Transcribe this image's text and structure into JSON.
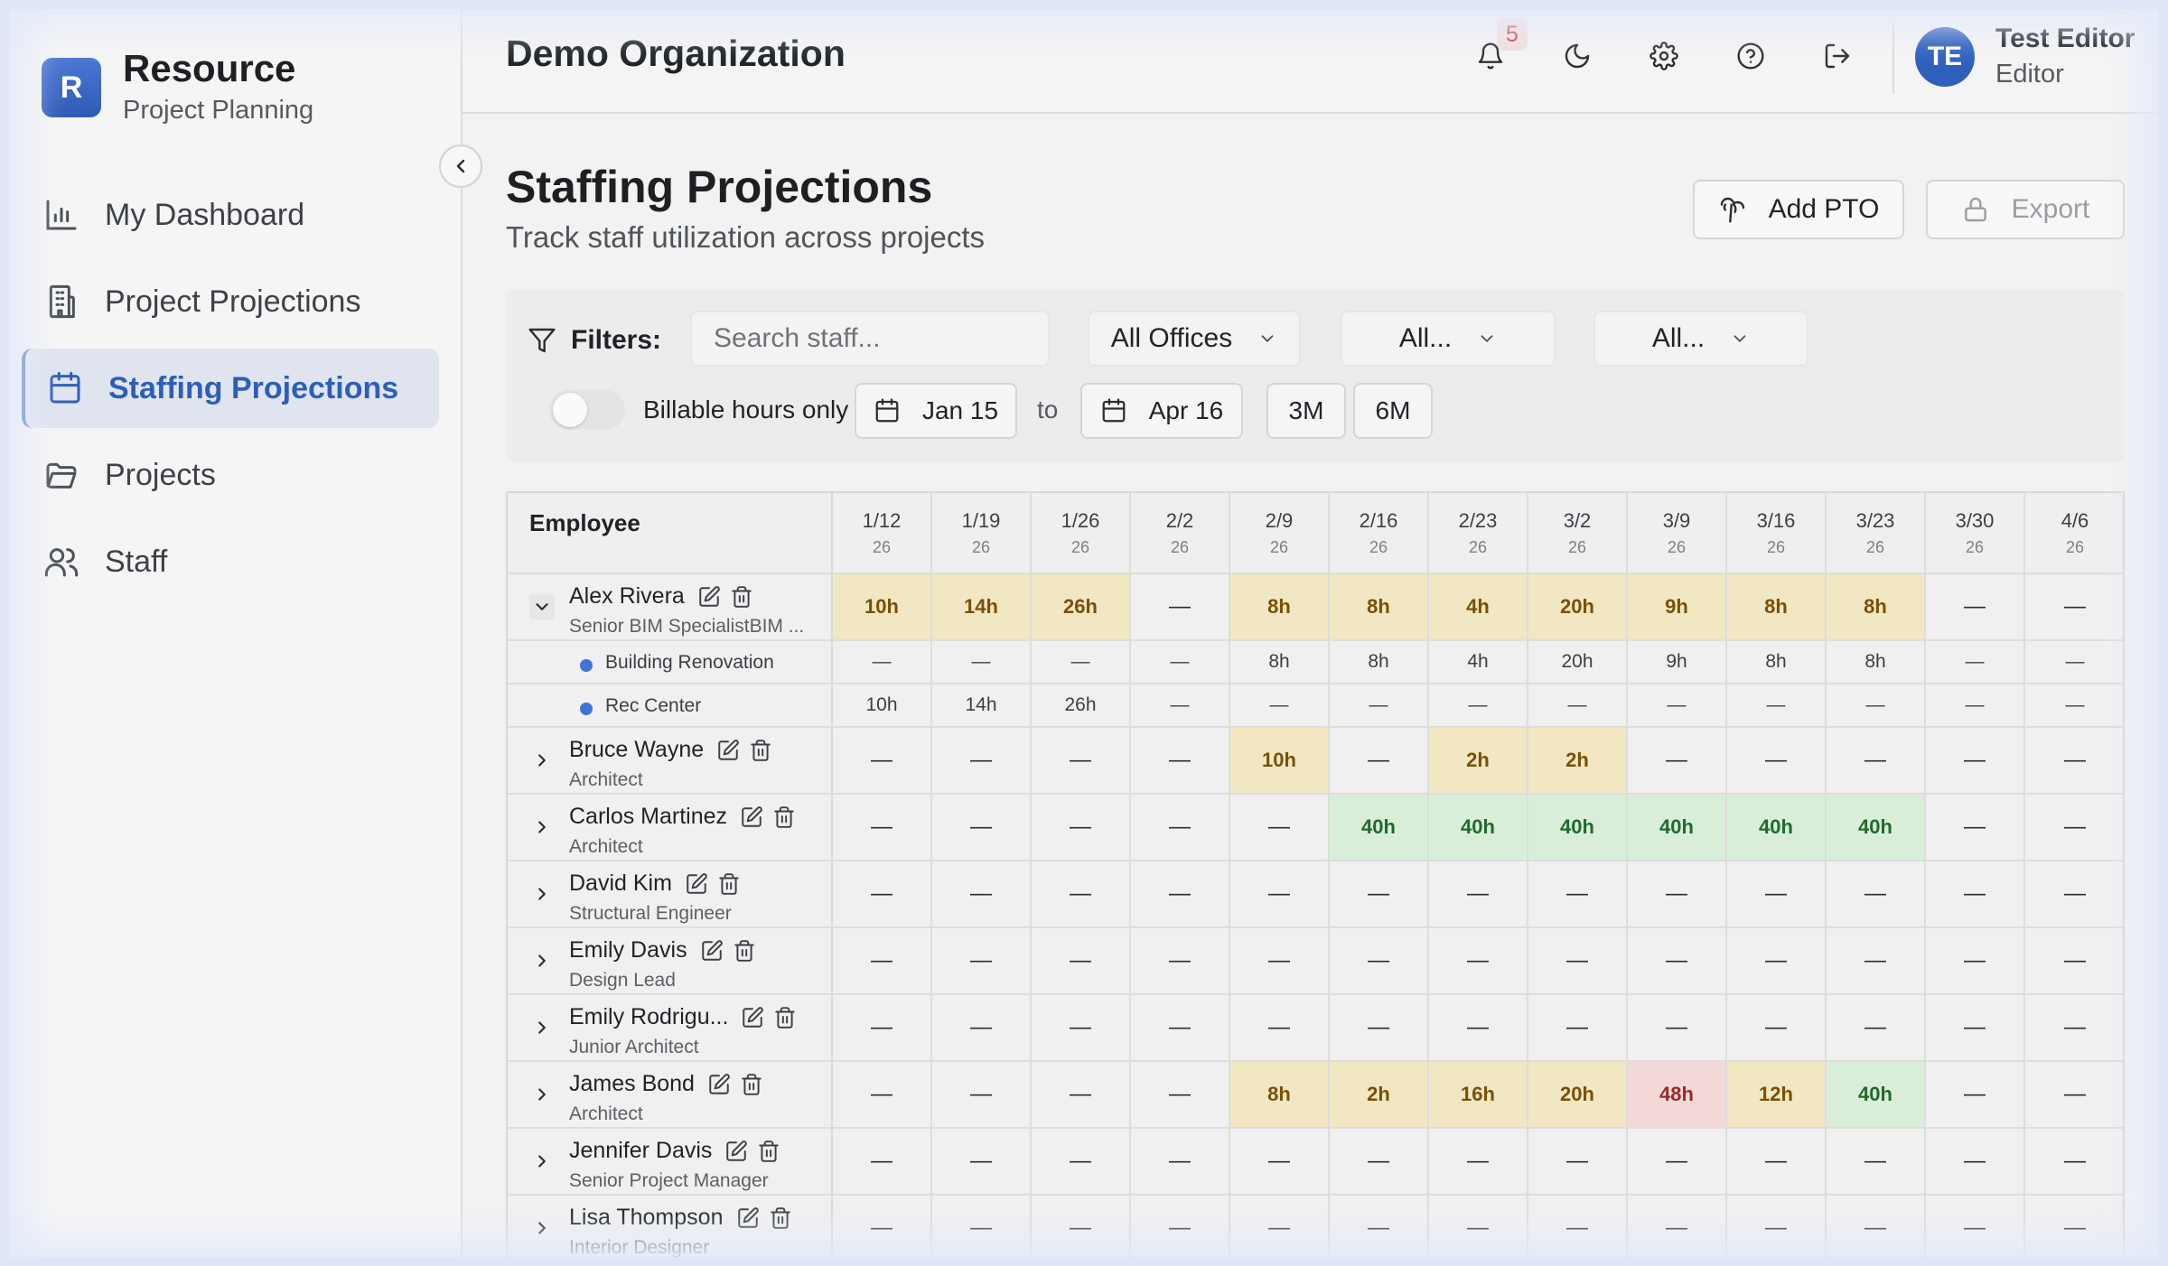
{
  "app": {
    "name": "Resource",
    "subtitle": "Project Planning",
    "logo_letter": "R"
  },
  "sidebar": {
    "items": [
      {
        "label": "My Dashboard",
        "icon": "bar-chart-icon",
        "active": false
      },
      {
        "label": "Project Projections",
        "icon": "building-icon",
        "active": false
      },
      {
        "label": "Staffing Projections",
        "icon": "calendar-icon",
        "active": true
      },
      {
        "label": "Projects",
        "icon": "folder-icon",
        "active": false
      },
      {
        "label": "Staff",
        "icon": "users-icon",
        "active": false
      }
    ]
  },
  "header": {
    "org_name": "Demo Organization",
    "notification_count": "5",
    "user": {
      "initials": "TE",
      "name": "Test Editor",
      "role": "Editor"
    }
  },
  "page": {
    "title": "Staffing Projections",
    "subtitle": "Track staff utilization across projects",
    "add_pto_label": "Add PTO",
    "export_label": "Export"
  },
  "filters": {
    "label": "Filters:",
    "search_placeholder": "Search staff...",
    "office_select": "All Offices",
    "select_2": "All...",
    "select_3": "All...",
    "billable_label": "Billable hours only",
    "billable_on": false,
    "date_from": "Jan 15",
    "to_label": "to",
    "date_to": "Apr 16",
    "range_3m": "3M",
    "range_6m": "6M"
  },
  "table": {
    "employee_header": "Employee",
    "weeks": [
      {
        "date": "1/12",
        "year": "26"
      },
      {
        "date": "1/19",
        "year": "26"
      },
      {
        "date": "1/26",
        "year": "26"
      },
      {
        "date": "2/2",
        "year": "26"
      },
      {
        "date": "2/9",
        "year": "26"
      },
      {
        "date": "2/16",
        "year": "26"
      },
      {
        "date": "2/23",
        "year": "26"
      },
      {
        "date": "3/2",
        "year": "26"
      },
      {
        "date": "3/9",
        "year": "26"
      },
      {
        "date": "3/16",
        "year": "26"
      },
      {
        "date": "3/23",
        "year": "26"
      },
      {
        "date": "3/30",
        "year": "26"
      },
      {
        "date": "4/6",
        "year": "26"
      }
    ],
    "colors": {
      "yellow": "#f2e7c3",
      "green": "#d9eed8",
      "red": "#f2d9d8"
    },
    "rows": [
      {
        "type": "employee",
        "name": "Alex Rivera",
        "role": "Senior BIM SpecialistBIM ...",
        "expanded": true,
        "hours": [
          "10h",
          "14h",
          "26h",
          "—",
          "8h",
          "8h",
          "4h",
          "20h",
          "9h",
          "8h",
          "8h",
          "—",
          "—"
        ],
        "status": [
          "y",
          "y",
          "y",
          "",
          "y",
          "y",
          "y",
          "y",
          "y",
          "y",
          "y",
          "",
          ""
        ]
      },
      {
        "type": "project",
        "name": "Building Renovation",
        "hours": [
          "—",
          "—",
          "—",
          "—",
          "8h",
          "8h",
          "4h",
          "20h",
          "9h",
          "8h",
          "8h",
          "—",
          "—"
        ]
      },
      {
        "type": "project",
        "name": "Rec Center",
        "hours": [
          "10h",
          "14h",
          "26h",
          "—",
          "—",
          "—",
          "—",
          "—",
          "—",
          "—",
          "—",
          "—",
          "—"
        ]
      },
      {
        "type": "employee",
        "name": "Bruce Wayne",
        "role": "Architect",
        "expanded": false,
        "hours": [
          "—",
          "—",
          "—",
          "—",
          "10h",
          "—",
          "2h",
          "2h",
          "—",
          "—",
          "—",
          "—",
          "—"
        ],
        "status": [
          "",
          "",
          "",
          "",
          "y",
          "",
          "y",
          "y",
          "",
          "",
          "",
          "",
          ""
        ]
      },
      {
        "type": "employee",
        "name": "Carlos Martinez",
        "role": "Architect",
        "expanded": false,
        "hours": [
          "—",
          "—",
          "—",
          "—",
          "—",
          "40h",
          "40h",
          "40h",
          "40h",
          "40h",
          "40h",
          "—",
          "—"
        ],
        "status": [
          "",
          "",
          "",
          "",
          "",
          "g",
          "g",
          "g",
          "g",
          "g",
          "g",
          "",
          ""
        ]
      },
      {
        "type": "employee",
        "name": "David Kim",
        "role": "Structural Engineer",
        "expanded": false,
        "hours": [
          "—",
          "—",
          "—",
          "—",
          "—",
          "—",
          "—",
          "—",
          "—",
          "—",
          "—",
          "—",
          "—"
        ],
        "status": [
          "",
          "",
          "",
          "",
          "",
          "",
          "",
          "",
          "",
          "",
          "",
          "",
          ""
        ]
      },
      {
        "type": "employee",
        "name": "Emily Davis",
        "role": "Design Lead",
        "expanded": false,
        "hours": [
          "—",
          "—",
          "—",
          "—",
          "—",
          "—",
          "—",
          "—",
          "—",
          "—",
          "—",
          "—",
          "—"
        ],
        "status": [
          "",
          "",
          "",
          "",
          "",
          "",
          "",
          "",
          "",
          "",
          "",
          "",
          ""
        ]
      },
      {
        "type": "employee",
        "name": "Emily Rodrigu...",
        "role": "Junior Architect",
        "expanded": false,
        "hours": [
          "—",
          "—",
          "—",
          "—",
          "—",
          "—",
          "—",
          "—",
          "—",
          "—",
          "—",
          "—",
          "—"
        ],
        "status": [
          "",
          "",
          "",
          "",
          "",
          "",
          "",
          "",
          "",
          "",
          "",
          "",
          ""
        ]
      },
      {
        "type": "employee",
        "name": "James Bond",
        "role": "Architect",
        "expanded": false,
        "hours": [
          "—",
          "—",
          "—",
          "—",
          "8h",
          "2h",
          "16h",
          "20h",
          "48h",
          "12h",
          "40h",
          "—",
          "—"
        ],
        "status": [
          "",
          "",
          "",
          "",
          "y",
          "y",
          "y",
          "y",
          "r",
          "y",
          "g",
          "",
          ""
        ]
      },
      {
        "type": "employee",
        "name": "Jennifer Davis",
        "role": "Senior Project Manager",
        "expanded": false,
        "hours": [
          "—",
          "—",
          "—",
          "—",
          "—",
          "—",
          "—",
          "—",
          "—",
          "—",
          "—",
          "—",
          "—"
        ],
        "status": [
          "",
          "",
          "",
          "",
          "",
          "",
          "",
          "",
          "",
          "",
          "",
          "",
          ""
        ]
      },
      {
        "type": "employee",
        "name": "Lisa Thompson",
        "role": "Interior Designer",
        "expanded": false,
        "hours": [
          "—",
          "—",
          "—",
          "—",
          "—",
          "—",
          "—",
          "—",
          "—",
          "—",
          "—",
          "—",
          "—"
        ],
        "status": [
          "",
          "",
          "",
          "",
          "",
          "",
          "",
          "",
          "",
          "",
          "",
          "",
          ""
        ]
      }
    ]
  }
}
